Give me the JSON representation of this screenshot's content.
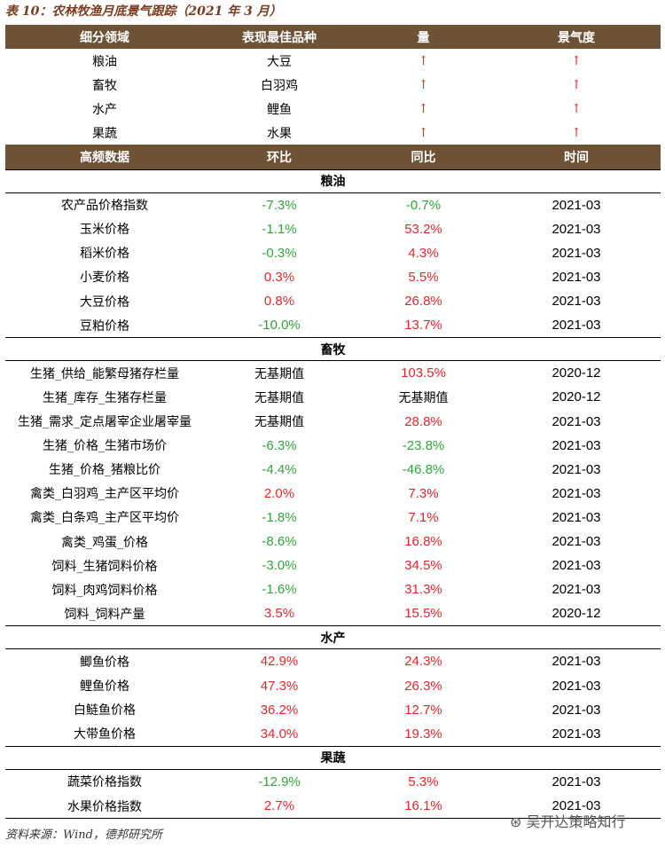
{
  "title": "表 10：农林牧渔月底景气跟踪（2021 年 3 月）",
  "table1": {
    "header": [
      "细分领域",
      "表现最佳品种",
      "量",
      "景气度"
    ],
    "rows": [
      [
        "粮油",
        "大豆",
        "↑",
        "↑"
      ],
      [
        "畜牧",
        "白羽鸡",
        "↑",
        "↑"
      ],
      [
        "水产",
        "鲤鱼",
        "↑",
        "↑"
      ],
      [
        "果蔬",
        "水果",
        "↑",
        "↑"
      ]
    ]
  },
  "table2": {
    "header": [
      "高频数据",
      "环比",
      "同比",
      "时间"
    ],
    "sections": [
      {
        "name": "粮油",
        "rows": [
          [
            "农产品价格指数",
            "-7.3%",
            "-0.7%",
            "2021-03"
          ],
          [
            "玉米价格",
            "-1.1%",
            "53.2%",
            "2021-03"
          ],
          [
            "稻米价格",
            "-0.3%",
            "4.3%",
            "2021-03"
          ],
          [
            "小麦价格",
            "0.3%",
            "5.5%",
            "2021-03"
          ],
          [
            "大豆价格",
            "0.8%",
            "26.8%",
            "2021-03"
          ],
          [
            "豆粕价格",
            "-10.0%",
            "13.7%",
            "2021-03"
          ]
        ]
      },
      {
        "name": "畜牧",
        "rows": [
          [
            "生猪_供给_能繁母猪存栏量",
            "无基期值",
            "103.5%",
            "2020-12"
          ],
          [
            "生猪_库存_生猪存栏量",
            "无基期值",
            "无基期值",
            "2020-12"
          ],
          [
            "生猪_需求_定点屠宰企业屠宰量",
            "无基期值",
            "28.8%",
            "2021-03"
          ],
          [
            "生猪_价格_生猪市场价",
            "-6.3%",
            "-23.8%",
            "2021-03"
          ],
          [
            "生猪_价格_猪粮比价",
            "-4.4%",
            "-46.8%",
            "2021-03"
          ],
          [
            "禽类_白羽鸡_主产区平均价",
            "2.0%",
            "7.3%",
            "2021-03"
          ],
          [
            "禽类_白条鸡_主产区平均价",
            "-1.8%",
            "7.1%",
            "2021-03"
          ],
          [
            "禽类_鸡蛋_价格",
            "-8.6%",
            "16.8%",
            "2021-03"
          ],
          [
            "饲料_生猪饲料价格",
            "-3.0%",
            "34.5%",
            "2021-03"
          ],
          [
            "饲料_肉鸡饲料价格",
            "-1.6%",
            "31.3%",
            "2021-03"
          ],
          [
            "饲料_饲料产量",
            "3.5%",
            "15.5%",
            "2020-12"
          ]
        ]
      },
      {
        "name": "水产",
        "rows": [
          [
            "鲫鱼价格",
            "42.9%",
            "24.3%",
            "2021-03"
          ],
          [
            "鲤鱼价格",
            "47.3%",
            "26.3%",
            "2021-03"
          ],
          [
            "白鲢鱼价格",
            "36.2%",
            "12.7%",
            "2021-03"
          ],
          [
            "大带鱼价格",
            "34.0%",
            "19.3%",
            "2021-03"
          ]
        ]
      },
      {
        "name": "果蔬",
        "rows": [
          [
            "蔬菜价格指数",
            "-12.9%",
            "5.3%",
            "2021-03"
          ],
          [
            "水果价格指数",
            "2.7%",
            "16.1%",
            "2021-03"
          ]
        ]
      }
    ]
  },
  "source": "资料来源：Wind，德邦研究所",
  "watermark": "吴开达策略知行"
}
